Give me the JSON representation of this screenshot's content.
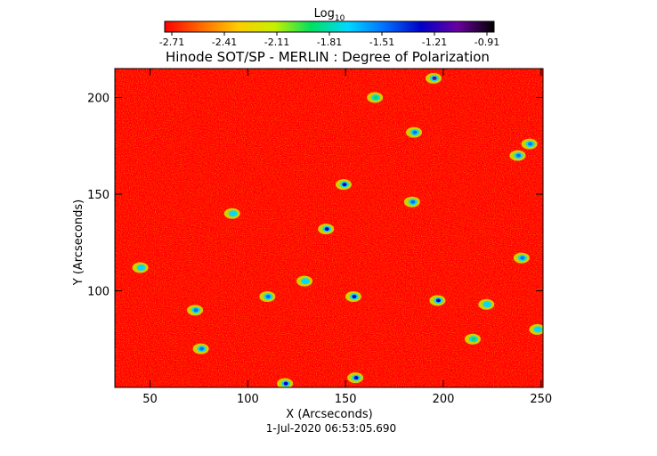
{
  "chart_data": {
    "type": "heatmap",
    "title": "Hinode SOT/SP - MERLIN : Degree of Polarization",
    "xlabel": "X (Arcseconds)",
    "ylabel": "Y (Arcseconds)",
    "xlim": [
      32,
      251
    ],
    "ylim": [
      50,
      215
    ],
    "x_ticks": [
      50,
      100,
      150,
      200,
      250
    ],
    "y_ticks": [
      100,
      150,
      200
    ],
    "colorbar": {
      "label_base": "Log",
      "label_sub": "10",
      "range": [
        -2.71,
        -0.91
      ],
      "ticks": [
        "-2.71",
        "-2.41",
        "-2.11",
        "-1.81",
        "-1.51",
        "-1.21",
        "-0.91"
      ],
      "colors": [
        "#ff0000",
        "#ff6a00",
        "#ffcc00",
        "#c8f000",
        "#00e060",
        "#00d8ff",
        "#0070ff",
        "#0000c8",
        "#6a00a0",
        "#000000"
      ]
    },
    "background_level": -2.66,
    "features": [
      {
        "x": 195,
        "y": 210,
        "level": -1.2
      },
      {
        "x": 149,
        "y": 155,
        "level": -1.3
      },
      {
        "x": 140,
        "y": 132,
        "level": -1.3
      },
      {
        "x": 154,
        "y": 97,
        "level": -1.35
      },
      {
        "x": 197,
        "y": 95,
        "level": -1.4
      },
      {
        "x": 110,
        "y": 97,
        "level": -1.5
      },
      {
        "x": 73,
        "y": 90,
        "level": -1.6
      },
      {
        "x": 76,
        "y": 70,
        "level": -1.5
      },
      {
        "x": 119,
        "y": 52,
        "level": -1.3
      },
      {
        "x": 155,
        "y": 55,
        "level": -1.4
      },
      {
        "x": 185,
        "y": 182,
        "level": -1.6
      },
      {
        "x": 244,
        "y": 176,
        "level": -1.5
      },
      {
        "x": 238,
        "y": 170,
        "level": -1.6
      },
      {
        "x": 240,
        "y": 117,
        "level": -1.6
      },
      {
        "x": 92,
        "y": 140,
        "level": -1.7
      },
      {
        "x": 129,
        "y": 105,
        "level": -1.8
      },
      {
        "x": 184,
        "y": 146,
        "level": -1.6
      },
      {
        "x": 222,
        "y": 93,
        "level": -1.7
      },
      {
        "x": 248,
        "y": 80,
        "level": -1.7
      },
      {
        "x": 45,
        "y": 112,
        "level": -1.8
      },
      {
        "x": 165,
        "y": 200,
        "level": -1.9
      },
      {
        "x": 215,
        "y": 75,
        "level": -1.9
      }
    ]
  },
  "footer": {
    "timestamp": "1-Jul-2020 06:53:05.690"
  }
}
